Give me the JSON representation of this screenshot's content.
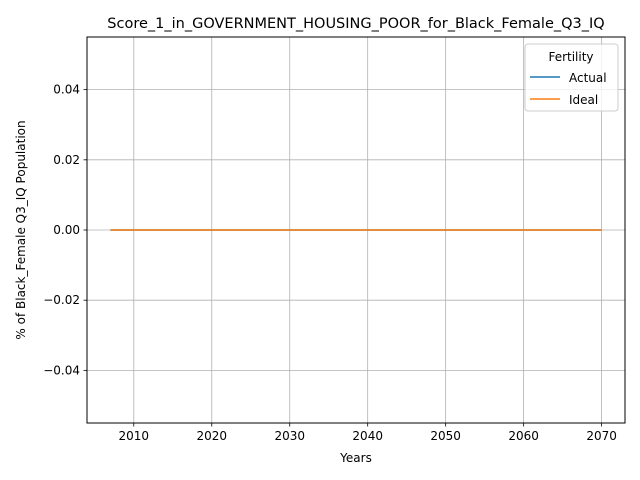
{
  "chart_data": {
    "type": "line",
    "title": "Score_1_in_GOVERNMENT_HOUSING_POOR_for_Black_Female_Q3_IQ",
    "xlabel": "Years",
    "ylabel": "% of Black_Female Q3_IQ Population",
    "xlim": [
      2004,
      2073
    ],
    "ylim": [
      -0.055,
      0.055
    ],
    "xticks": [
      2010,
      2020,
      2030,
      2040,
      2050,
      2060,
      2070
    ],
    "yticks": [
      -0.04,
      -0.02,
      0.0,
      0.02,
      0.04
    ],
    "ytick_labels": [
      "−0.04",
      "−0.02",
      "0.00",
      "0.02",
      "0.04"
    ],
    "grid": true,
    "legend": {
      "title": "Fertility",
      "placement": "top-right"
    },
    "series": [
      {
        "name": "Actual",
        "color": "#1f77b4",
        "x": [
          2007,
          2070
        ],
        "y": [
          0,
          0
        ]
      },
      {
        "name": "Ideal",
        "color": "#ff7f0e",
        "x": [
          2007,
          2070
        ],
        "y": [
          0,
          0
        ]
      }
    ]
  }
}
